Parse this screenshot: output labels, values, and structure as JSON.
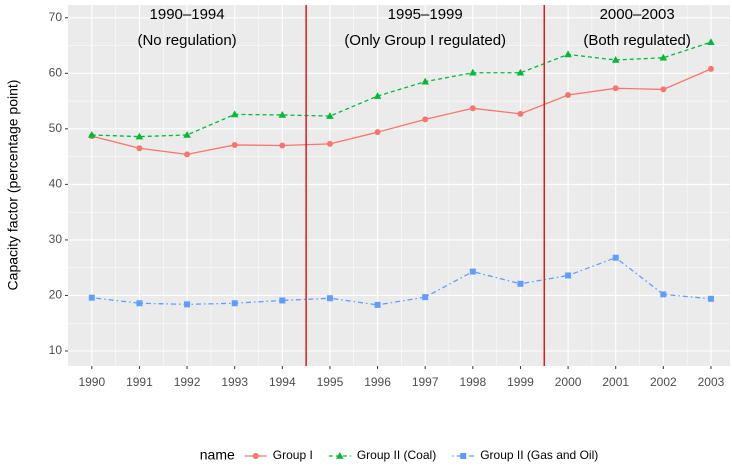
{
  "chart_data": {
    "type": "line",
    "y_label": "Capacity factor (percentage point)",
    "x": [
      1990,
      1991,
      1992,
      1993,
      1994,
      1995,
      1996,
      1997,
      1998,
      1999,
      2000,
      2001,
      2002,
      2003
    ],
    "xlim": [
      1989.5,
      2003.4
    ],
    "xticks": [
      1990,
      1991,
      1992,
      1993,
      1994,
      1995,
      1996,
      1997,
      1998,
      1999,
      2000,
      2001,
      2002,
      2003
    ],
    "ylim": [
      7.3,
      72.3
    ],
    "yticks": [
      10,
      20,
      30,
      40,
      50,
      60,
      70
    ],
    "grid": true,
    "legend_title": "name",
    "legend_position": "bottom",
    "vlines": [
      1994.5,
      1999.5
    ],
    "vline_color": "#e41a1c",
    "regions": [
      {
        "title": "1990–1994",
        "subtitle": "(No regulation)"
      },
      {
        "title": "1995–1999",
        "subtitle": "(Only Group I regulated)"
      },
      {
        "title": "2000–2003",
        "subtitle": "(Both regulated)"
      }
    ],
    "series": [
      {
        "name": "Group I",
        "color": "#F8766D",
        "marker": "circle",
        "dash": "solid",
        "values": [
          48.7,
          46.5,
          45.4,
          47.1,
          47.0,
          47.3,
          49.4,
          51.7,
          53.7,
          52.7,
          56.1,
          57.3,
          57.1,
          60.8
        ]
      },
      {
        "name": "Group II (Coal)",
        "color": "#00BA38",
        "marker": "triangle",
        "dash": "dashed",
        "values": [
          48.9,
          48.6,
          48.9,
          52.6,
          52.5,
          52.3,
          55.9,
          58.5,
          60.1,
          60.1,
          63.4,
          62.4,
          62.8,
          65.6
        ]
      },
      {
        "name": "Group II (Gas and Oil)",
        "color": "#619CFF",
        "marker": "square",
        "dash": "dotdash",
        "values": [
          19.6,
          18.6,
          18.4,
          18.6,
          19.1,
          19.5,
          18.3,
          19.7,
          24.3,
          22.1,
          23.6,
          26.8,
          20.2,
          19.4
        ]
      }
    ]
  }
}
